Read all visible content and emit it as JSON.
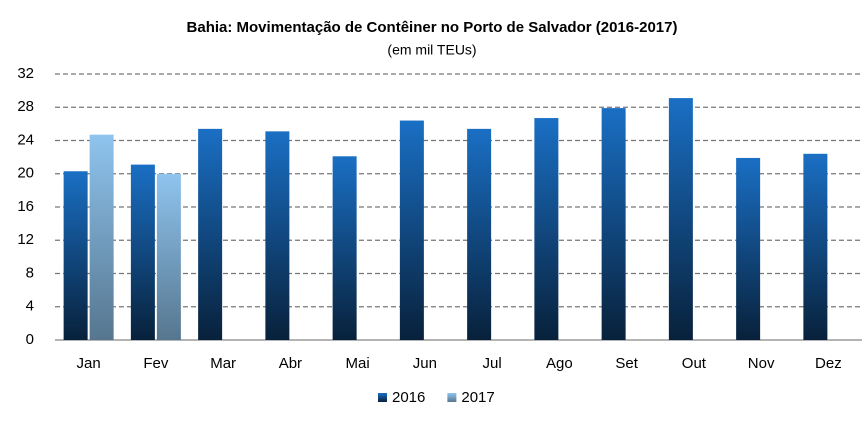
{
  "chart_data": {
    "type": "bar",
    "title": "Bahia: Movimentação de Contêiner no Porto de Salvador (2016-2017)",
    "subtitle": "(em mil  TEUs)",
    "categories": [
      "Jan",
      "Fev",
      "Mar",
      "Abr",
      "Mai",
      "Jun",
      "Jul",
      "Ago",
      "Set",
      "Out",
      "Nov",
      "Dez"
    ],
    "series": [
      {
        "name": "2016",
        "color": "#1a6fc4",
        "values": [
          20.3,
          21.1,
          25.4,
          25.1,
          22.1,
          26.4,
          25.4,
          26.7,
          27.9,
          29.1,
          21.9,
          22.4
        ]
      },
      {
        "name": "2017",
        "color": "#8fc4ee",
        "values": [
          24.7,
          20.0,
          null,
          null,
          null,
          null,
          null,
          null,
          null,
          null,
          null,
          null
        ]
      }
    ],
    "ylim": [
      0,
      32
    ],
    "yticks": [
      0,
      4,
      8,
      12,
      16,
      20,
      24,
      28,
      32
    ],
    "grid": true,
    "legend": "bottom"
  }
}
